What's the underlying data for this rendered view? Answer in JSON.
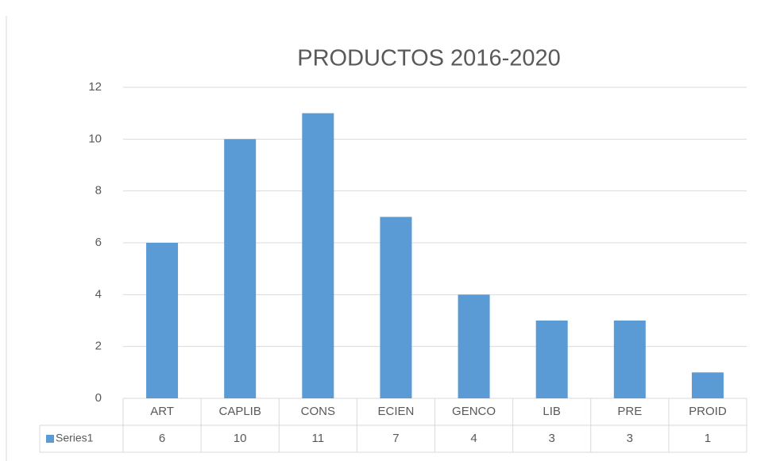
{
  "chart_data": {
    "type": "bar",
    "title": "PRODUCTOS 2016-2020",
    "categories": [
      "ART",
      "CAPLIB",
      "CONS",
      "ECIEN",
      "GENCO",
      "LIB",
      "PRE",
      "PROID"
    ],
    "series": [
      {
        "name": "Series1",
        "color": "#5b9bd5",
        "values": [
          6,
          10,
          11,
          7,
          4,
          3,
          3,
          1
        ]
      }
    ],
    "ylim": [
      0,
      12
    ],
    "yticks": [
      0,
      2,
      4,
      6,
      8,
      10,
      12
    ],
    "grid": true,
    "data_table": true
  }
}
